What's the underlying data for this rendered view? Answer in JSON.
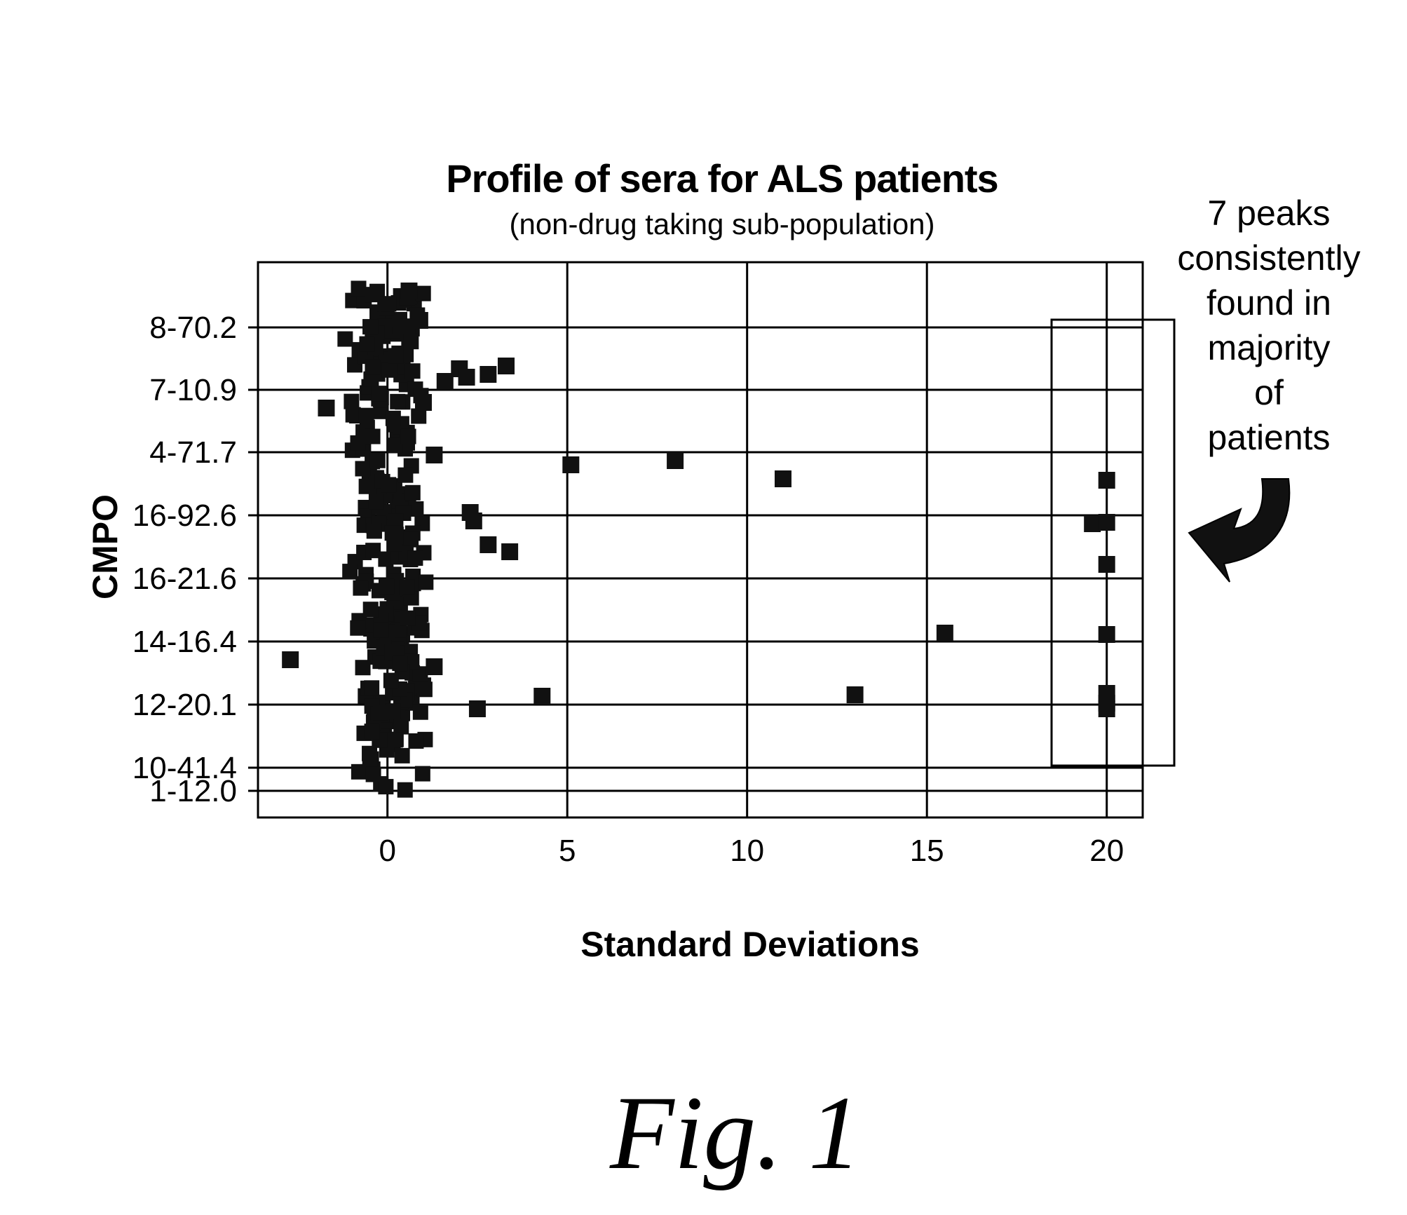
{
  "chart_data": {
    "type": "scatter",
    "title": "Profile of sera for ALS patients",
    "subtitle": "(non-drug taking sub-population)",
    "xlabel": "Standard Deviations",
    "ylabel": "CMPO",
    "xlim": [
      -3.6,
      21
    ],
    "x_ticks": [
      0,
      5,
      10,
      15,
      20
    ],
    "y_categories": [
      "1-12.0",
      "10-41.4",
      "12-20.1",
      "14-16.4",
      "16-21.6",
      "16-92.6",
      "4-71.7",
      "7-10.9",
      "8-70.2"
    ],
    "grid": true,
    "points": [
      {
        "x": 0.6,
        "y": "8-70.2"
      },
      {
        "x": 0.9,
        "y": "8-70.2"
      },
      {
        "x": 2.0,
        "y": "7-10.9"
      },
      {
        "x": 2.8,
        "y": "7-10.9"
      },
      {
        "x": 3.3,
        "y": "7-10.9"
      },
      {
        "x": 1.6,
        "y": "7-10.9"
      },
      {
        "x": 2.2,
        "y": "7-10.9"
      },
      {
        "x": -1.7,
        "y": "7-10.9"
      },
      {
        "x": 1.0,
        "y": "7-10.9"
      },
      {
        "x": 11.0,
        "y": "4-71.7"
      },
      {
        "x": 20.0,
        "y": "4-71.7"
      },
      {
        "x": 5.1,
        "y": "4-71.7"
      },
      {
        "x": 8.0,
        "y": "4-71.7"
      },
      {
        "x": 1.3,
        "y": "4-71.7"
      },
      {
        "x": 2.4,
        "y": "16-92.6"
      },
      {
        "x": 2.3,
        "y": "16-92.6"
      },
      {
        "x": 19.6,
        "y": "16-92.6"
      },
      {
        "x": 2.8,
        "y": "16-92.6"
      },
      {
        "x": 3.4,
        "y": "16-92.6"
      },
      {
        "x": 20.0,
        "y": "16-21.6"
      },
      {
        "x": 20.0,
        "y": "16-21.6"
      },
      {
        "x": 15.5,
        "y": "14-16.4"
      },
      {
        "x": 20.0,
        "y": "14-16.4"
      },
      {
        "x": -2.7,
        "y": "14-16.4"
      },
      {
        "x": 1.3,
        "y": "14-16.4"
      },
      {
        "x": 20.0,
        "y": "12-20.1"
      },
      {
        "x": 4.3,
        "y": "12-20.1"
      },
      {
        "x": 13.0,
        "y": "12-20.1"
      },
      {
        "x": 20.0,
        "y": "12-20.1"
      },
      {
        "x": 2.5,
        "y": "12-20.1"
      },
      {
        "x": 20.0,
        "y": "12-20.1"
      }
    ],
    "dense_cluster_x_range": [
      -1.2,
      1.2
    ],
    "annotation": {
      "lines": [
        "7 peaks",
        "consistently",
        "found in",
        "majority",
        "of",
        "patients"
      ]
    }
  },
  "figure_caption": "Fig. 1",
  "colors": {
    "marks": "#111111",
    "grid": "#000000",
    "background": "#ffffff"
  }
}
